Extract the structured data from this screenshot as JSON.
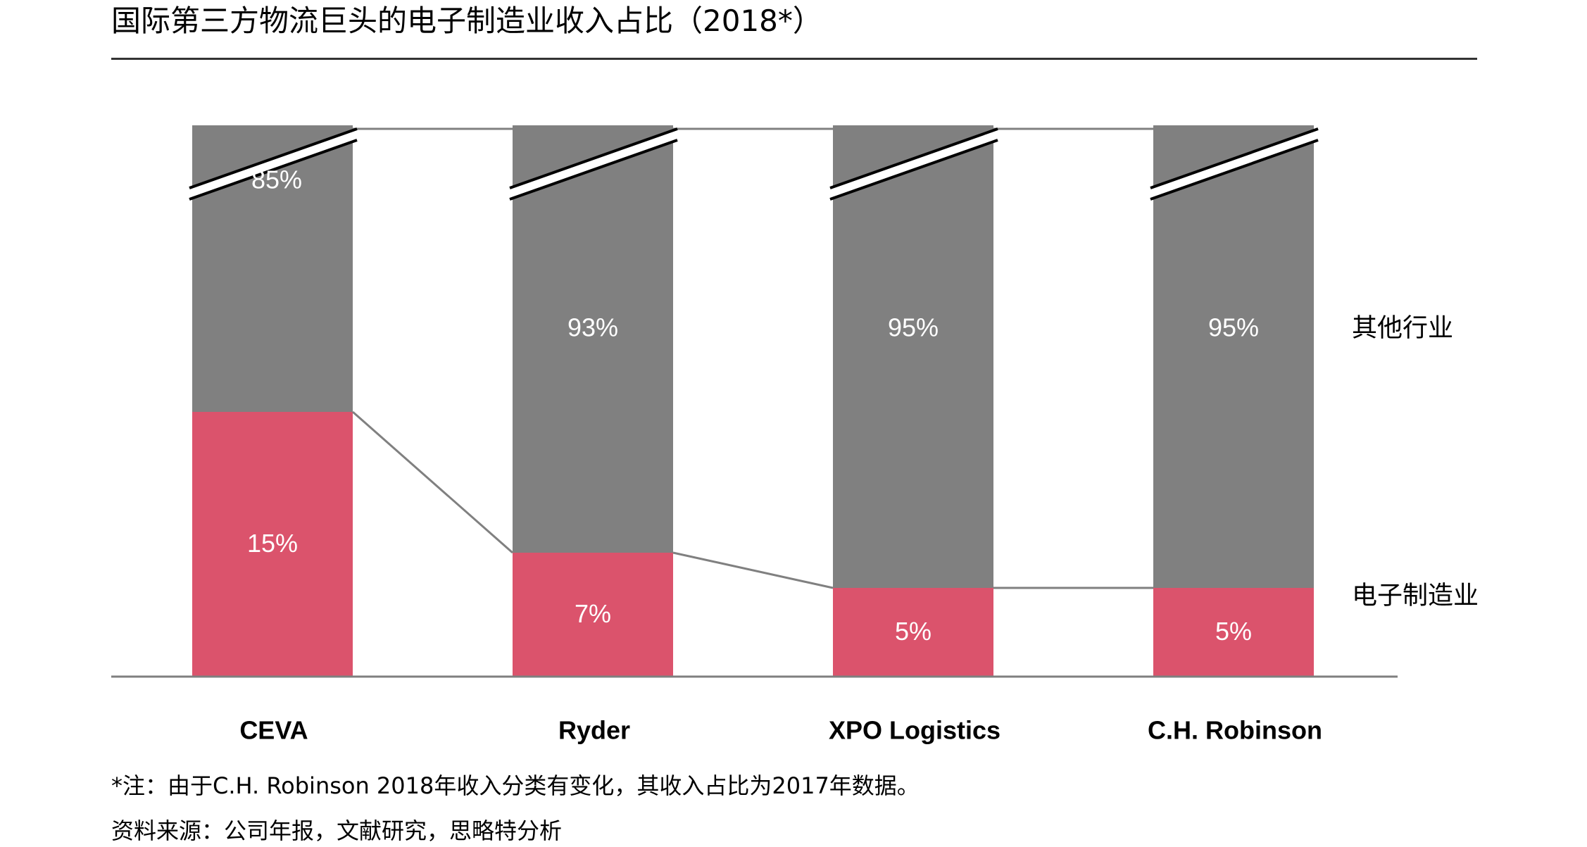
{
  "title": "国际第三方物流巨头的电子制造业收入占比（2018*）",
  "colors": {
    "electronics": "#DB536C",
    "other": "#808080",
    "connector": "#808080",
    "axis": "#7F7F7F"
  },
  "chart_data": {
    "type": "bar",
    "stacked": true,
    "percent": true,
    "broken_axis": true,
    "categories": [
      "CEVA",
      "Ryder",
      "XPO Logistics",
      "C.H. Robinson"
    ],
    "series": [
      {
        "name": "电子制造业",
        "values": [
          15,
          7,
          5,
          5
        ],
        "labels": [
          "15%",
          "7%",
          "5%",
          "5%"
        ]
      },
      {
        "name": "其他行业",
        "values": [
          85,
          93,
          95,
          95
        ],
        "labels": [
          "85%",
          "93%",
          "95%",
          "95%"
        ]
      }
    ],
    "legend_placement": "right",
    "grid": false
  },
  "notes": {
    "footnote": "*注：由于C.H. Robinson 2018年收入分类有变化，其收入占比为2017年数据。",
    "source": "资料来源：公司年报，文献研究，思略特分析"
  }
}
